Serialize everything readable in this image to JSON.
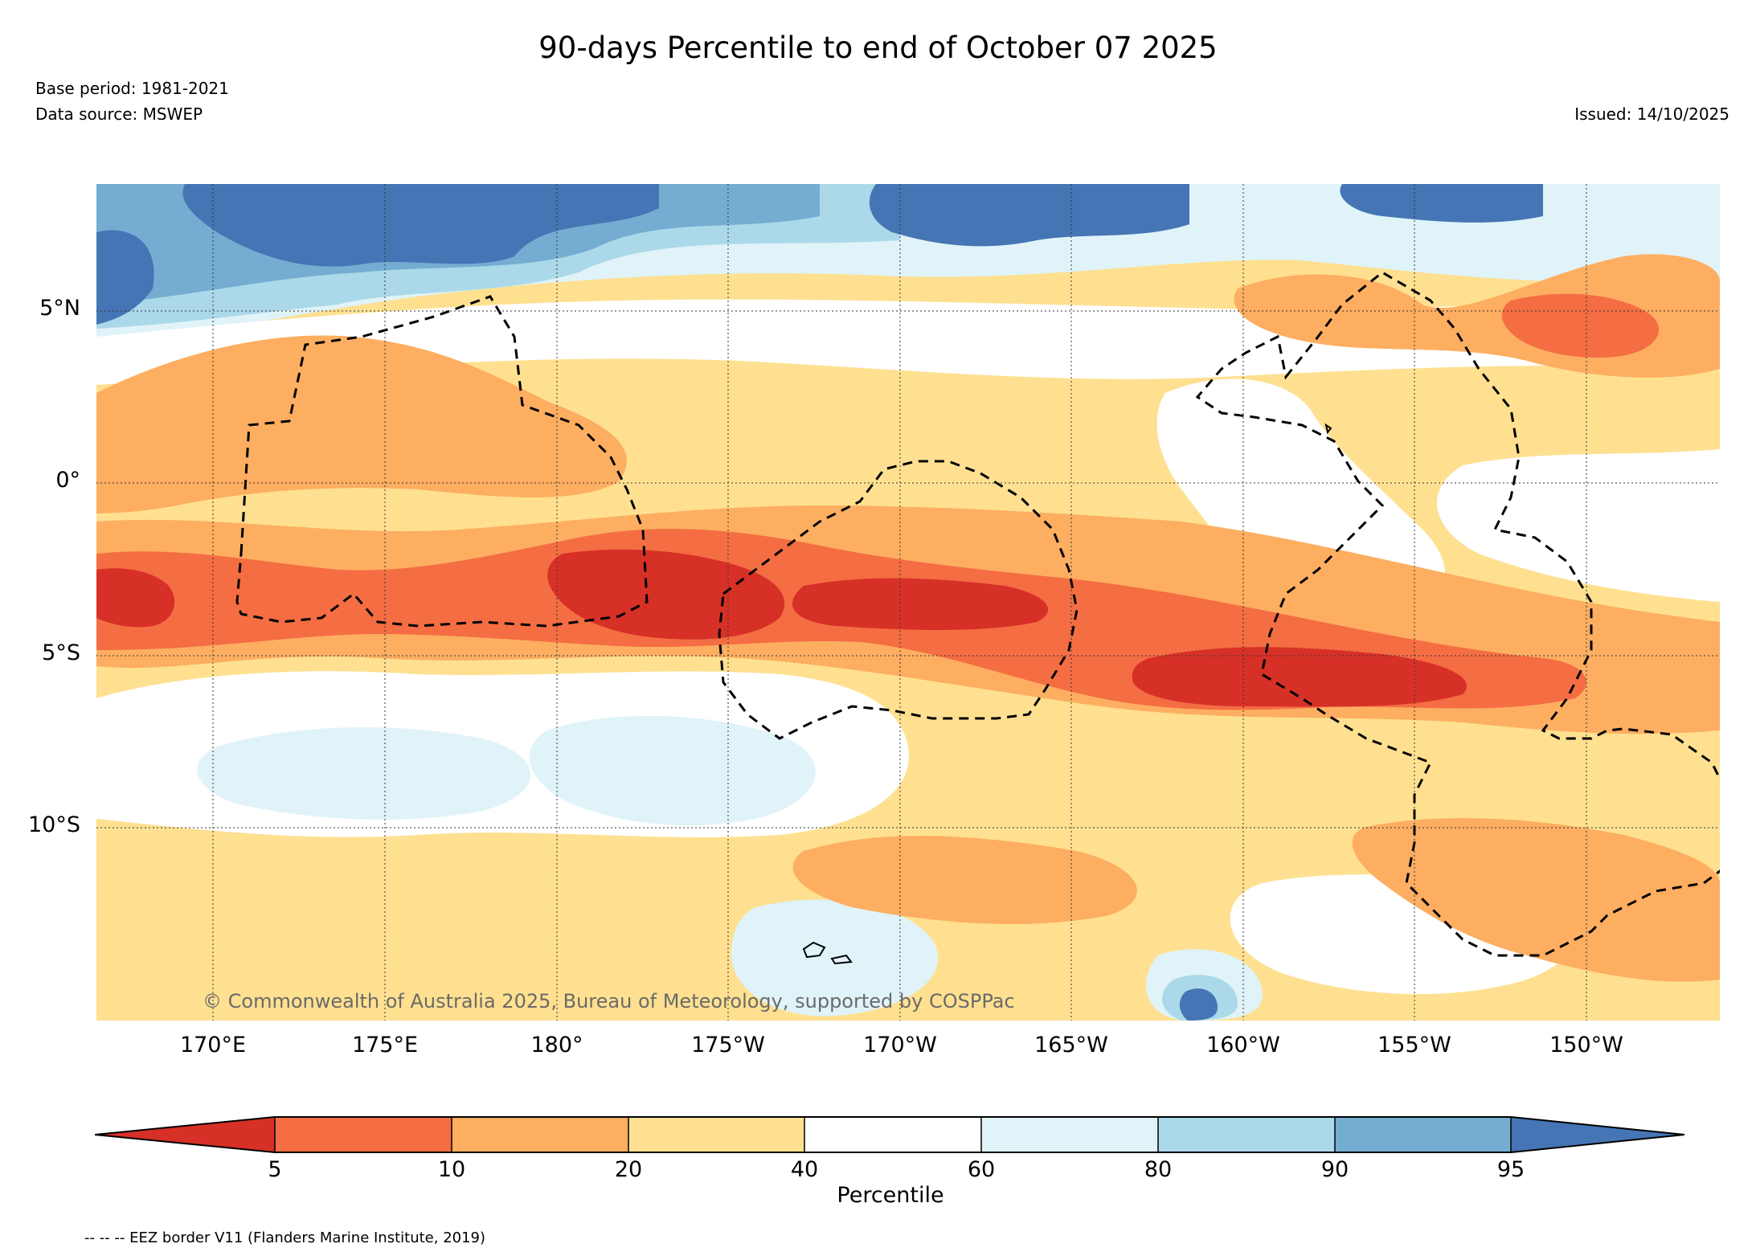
{
  "header": {
    "title": "90-days Percentile to end of October 07 2025",
    "base_period": "Base period: 1981-2021",
    "data_source": "Data source: MSWEP",
    "issued": "Issued: 14/10/2025"
  },
  "map": {
    "lat_labels": [
      "5°N",
      "0°",
      "5°S",
      "10°S"
    ],
    "lon_labels": [
      "170°E",
      "175°E",
      "180°",
      "175°W",
      "170°W",
      "165°W",
      "160°W",
      "155°W",
      "150°W"
    ],
    "copyright": "© Commonwealth of Australia 2025, Bureau of Meteorology, supported by COSPPac"
  },
  "colorbar": {
    "label": "Percentile",
    "ticks": [
      "5",
      "10",
      "20",
      "40",
      "60",
      "80",
      "90",
      "95"
    ],
    "colors": [
      "#d73027",
      "#f46d43",
      "#fdae61",
      "#fee090",
      "#ffffff",
      "#e0f3f8",
      "#abd9e9",
      "#74add1",
      "#4575b4"
    ]
  },
  "footnote": "-- -- -- EEZ border V11 (Flanders Marine Institute, 2019)"
}
